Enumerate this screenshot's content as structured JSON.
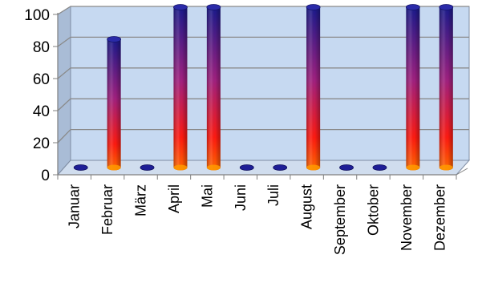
{
  "chart_data": {
    "type": "bar",
    "style": "3d-cylinder",
    "categories": [
      "Januar",
      "Februar",
      "März",
      "April",
      "Mai",
      "Juni",
      "Juli",
      "August",
      "September",
      "Oktober",
      "November",
      "Dezember"
    ],
    "values": [
      0,
      80,
      0,
      100,
      100,
      0,
      0,
      100,
      0,
      0,
      100,
      100
    ],
    "ylim": [
      0,
      100
    ],
    "yticks": [
      0,
      20,
      40,
      60,
      80,
      100
    ],
    "grid": true,
    "legend": "none",
    "title": "",
    "xlabel": "",
    "ylabel": "",
    "colors": {
      "plot_back_wall": "#c6d9f1",
      "plot_side_wall": "#a9bcd6",
      "plot_floor": "#d0ddee",
      "bar_gradient_top": "#1a1a8c",
      "bar_gradient_mid": "#b0207a",
      "bar_gradient_bottom": "#ff2a00",
      "bar_base": "#ff9a00",
      "gridline": "#8a8a8a"
    }
  }
}
